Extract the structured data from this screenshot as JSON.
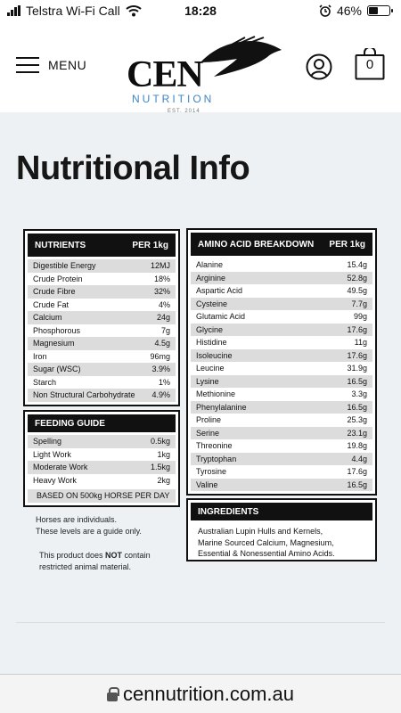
{
  "status_bar": {
    "carrier": "Telstra Wi-Fi Call",
    "time": "18:28",
    "battery": "46%"
  },
  "header": {
    "menu_label": "MENU",
    "logo_text": "CEN",
    "logo_sub": "NUTRITION",
    "logo_est": "EST. 2014",
    "cart_count": "0"
  },
  "page_title": "Nutritional Info",
  "nutrients": {
    "title": "NUTRIENTS",
    "unit": "PER 1kg",
    "rows": [
      {
        "name": "Digestible Energy",
        "value": "12MJ"
      },
      {
        "name": "Crude Protein",
        "value": "18%"
      },
      {
        "name": "Crude Fibre",
        "value": "32%"
      },
      {
        "name": "Crude Fat",
        "value": "4%"
      },
      {
        "name": "Calcium",
        "value": "24g"
      },
      {
        "name": "Phosphorous",
        "value": "7g"
      },
      {
        "name": "Magnesium",
        "value": "4.5g"
      },
      {
        "name": "Iron",
        "value": "96mg"
      },
      {
        "name": "Sugar (WSC)",
        "value": "3.9%"
      },
      {
        "name": "Starch",
        "value": "1%"
      },
      {
        "name": "Non Structural Carbohydrate",
        "value": "4.9%"
      }
    ]
  },
  "feeding": {
    "title": "FEEDING GUIDE",
    "rows": [
      {
        "name": "Spelling",
        "value": "0.5kg"
      },
      {
        "name": "Light Work",
        "value": "1kg"
      },
      {
        "name": "Moderate Work",
        "value": "1.5kg"
      },
      {
        "name": "Heavy Work",
        "value": "2kg"
      }
    ],
    "basis": "BASED ON 500kg HORSE PER DAY"
  },
  "notes": {
    "line1": "Horses are individuals.",
    "line2": "These levels are a guide only.",
    "line3_before": "This product does ",
    "line3_bold": "NOT",
    "line3_after": " contain",
    "line4": "restricted animal material."
  },
  "amino": {
    "title": "AMINO ACID BREAKDOWN",
    "unit": "PER 1kg",
    "rows": [
      {
        "name": "Alanine",
        "value": "15.4g"
      },
      {
        "name": "Arginine",
        "value": "52.8g"
      },
      {
        "name": "Aspartic Acid",
        "value": "49.5g"
      },
      {
        "name": "Cysteine",
        "value": "7.7g"
      },
      {
        "name": "Glutamic Acid",
        "value": "99g"
      },
      {
        "name": "Glycine",
        "value": "17.6g"
      },
      {
        "name": "Histidine",
        "value": "11g"
      },
      {
        "name": "Isoleucine",
        "value": "17.6g"
      },
      {
        "name": "Leucine",
        "value": "31.9g"
      },
      {
        "name": "Lysine",
        "value": "16.5g"
      },
      {
        "name": "Methionine",
        "value": "3.3g"
      },
      {
        "name": "Phenylalanine",
        "value": "16.5g"
      },
      {
        "name": "Proline",
        "value": "25.3g"
      },
      {
        "name": "Serine",
        "value": "23.1g"
      },
      {
        "name": "Threonine",
        "value": "19.8g"
      },
      {
        "name": "Tryptophan",
        "value": "4.4g"
      },
      {
        "name": "Tyrosine",
        "value": "17.6g"
      },
      {
        "name": "Valine",
        "value": "16.5g"
      }
    ]
  },
  "ingredients": {
    "title": "INGREDIENTS",
    "line1": "Australian Lupin Hulls and Kernels,",
    "line2": "Marine Sourced Calcium, Magnesium,",
    "line3": "Essential & Nonessential Amino Acids."
  },
  "url": "cennutrition.com.au",
  "icons": {
    "signal": "signal-bars-icon",
    "wifi": "wifi-icon",
    "alarm": "alarm-clock-icon",
    "battery": "battery-icon",
    "menu": "hamburger-icon",
    "account": "user-icon",
    "cart": "shopping-bag-icon",
    "lock": "lock-icon"
  }
}
